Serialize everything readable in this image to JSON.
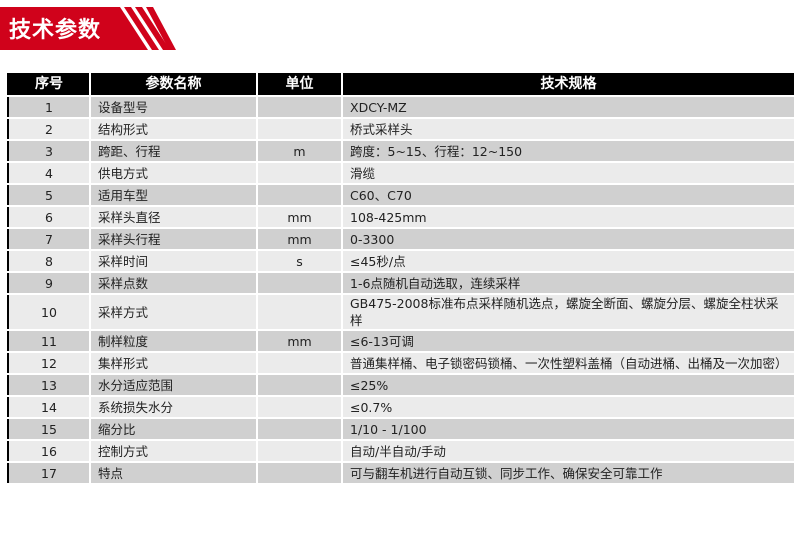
{
  "title": "技术参数",
  "colors": {
    "brand": "#d0021b",
    "header": "#000000",
    "row_odd": "#d0d0d0",
    "row_even": "#ebebeb"
  },
  "headers": [
    "序号",
    "参数名称",
    "单位",
    "技术规格"
  ],
  "rows": [
    [
      "1",
      "设备型号",
      "",
      "XDCY-MZ"
    ],
    [
      "2",
      "结构形式",
      "",
      "桥式采样头"
    ],
    [
      "3",
      "跨距、行程",
      "m",
      "跨度：5~15、行程：12~150"
    ],
    [
      "4",
      "供电方式",
      "",
      "滑缆"
    ],
    [
      "5",
      "适用车型",
      "",
      "C60、C70"
    ],
    [
      "6",
      "采样头直径",
      "mm",
      "108-425mm"
    ],
    [
      "7",
      "采样头行程",
      "mm",
      "0-3300"
    ],
    [
      "8",
      "采样时间",
      "s",
      "≤45秒/点"
    ],
    [
      "9",
      "采样点数",
      "",
      "1-6点随机自动选取，连续采样"
    ],
    [
      "10",
      "采样方式",
      "",
      "GB475-2008标准布点采样随机选点，螺旋全断面、螺旋分层、螺旋全柱状采样"
    ],
    [
      "11",
      "制样粒度",
      "mm",
      "≤6-13可调"
    ],
    [
      "12",
      "集样形式",
      "",
      "普通集样桶、电子锁密码锁桶、一次性塑料盖桶（自动进桶、出桶及一次加密）"
    ],
    [
      "13",
      "水分适应范围",
      "",
      "≤25%"
    ],
    [
      "14",
      "系统损失水分",
      "",
      "≤0.7%"
    ],
    [
      "15",
      "缩分比",
      "",
      "1/10 - 1/100"
    ],
    [
      "16",
      "控制方式",
      "",
      "自动/半自动/手动"
    ],
    [
      "17",
      "特点",
      "",
      "可与翻车机进行自动互锁、同步工作、确保安全可靠工作"
    ]
  ]
}
